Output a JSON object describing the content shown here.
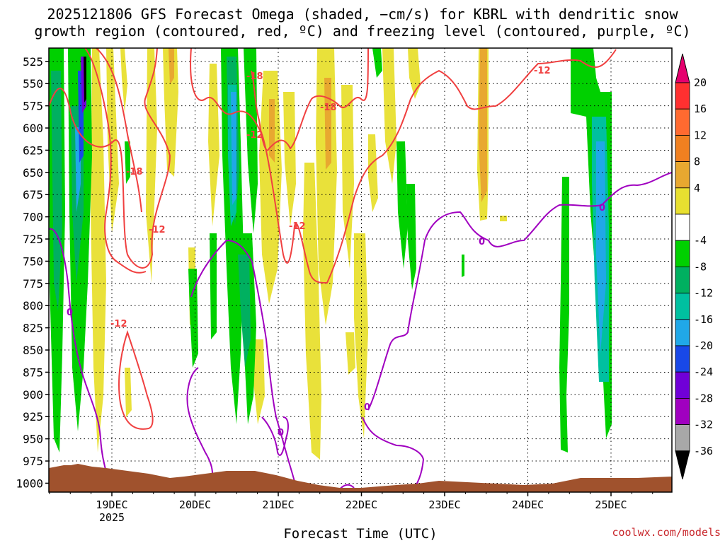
{
  "title_line1": "2025121806 GFS Forecast Omega (shaded, −cm/s) for KBRL with dendritic snow",
  "title_line2": "growth region (contoured, red, ºC) and freezing level (contoured, purple, ºC)",
  "credit": "coolwx.com/models",
  "chart_data": {
    "type": "heatmap",
    "title": "2025121806 GFS Forecast Omega (shaded, −cm/s) for KBRL with dendritic snow growth region (contoured, red, ºC) and freezing level (contoured, purple, ºC)",
    "xlabel": "Forecast Time (UTC)",
    "ylabel": "",
    "y_axis_type": "pressure (inverted)",
    "y_ticks": [
      525,
      550,
      575,
      600,
      625,
      650,
      675,
      700,
      725,
      750,
      775,
      800,
      825,
      850,
      875,
      900,
      925,
      950,
      975,
      1000
    ],
    "ylim": [
      1010,
      510
    ],
    "x_ticks": [
      "19DEC",
      "20DEC",
      "21DEC",
      "22DEC",
      "23DEC",
      "24DEC",
      "25DEC"
    ],
    "x_sublabel": "2025",
    "grid": true,
    "colorbar": {
      "labels": [
        "20",
        "16",
        "12",
        "8",
        "4",
        "-4",
        "-8",
        "-12",
        "-16",
        "-20",
        "-24",
        "-28",
        "-32",
        "-36"
      ],
      "colors": [
        "#e5006e",
        "#ff3030",
        "#ff6a30",
        "#f08020",
        "#e8a830",
        "#e8e030",
        "#ffffff",
        "#00d000",
        "#00b060",
        "#00c0a0",
        "#20a8e8",
        "#1848e8",
        "#7000d8",
        "#a000c0",
        "#a8a8a8",
        "#000000"
      ]
    },
    "freezing_level_label": "0",
    "dgz_labels": [
      "-18",
      "-12"
    ],
    "terrain_color": "#a0522d"
  }
}
